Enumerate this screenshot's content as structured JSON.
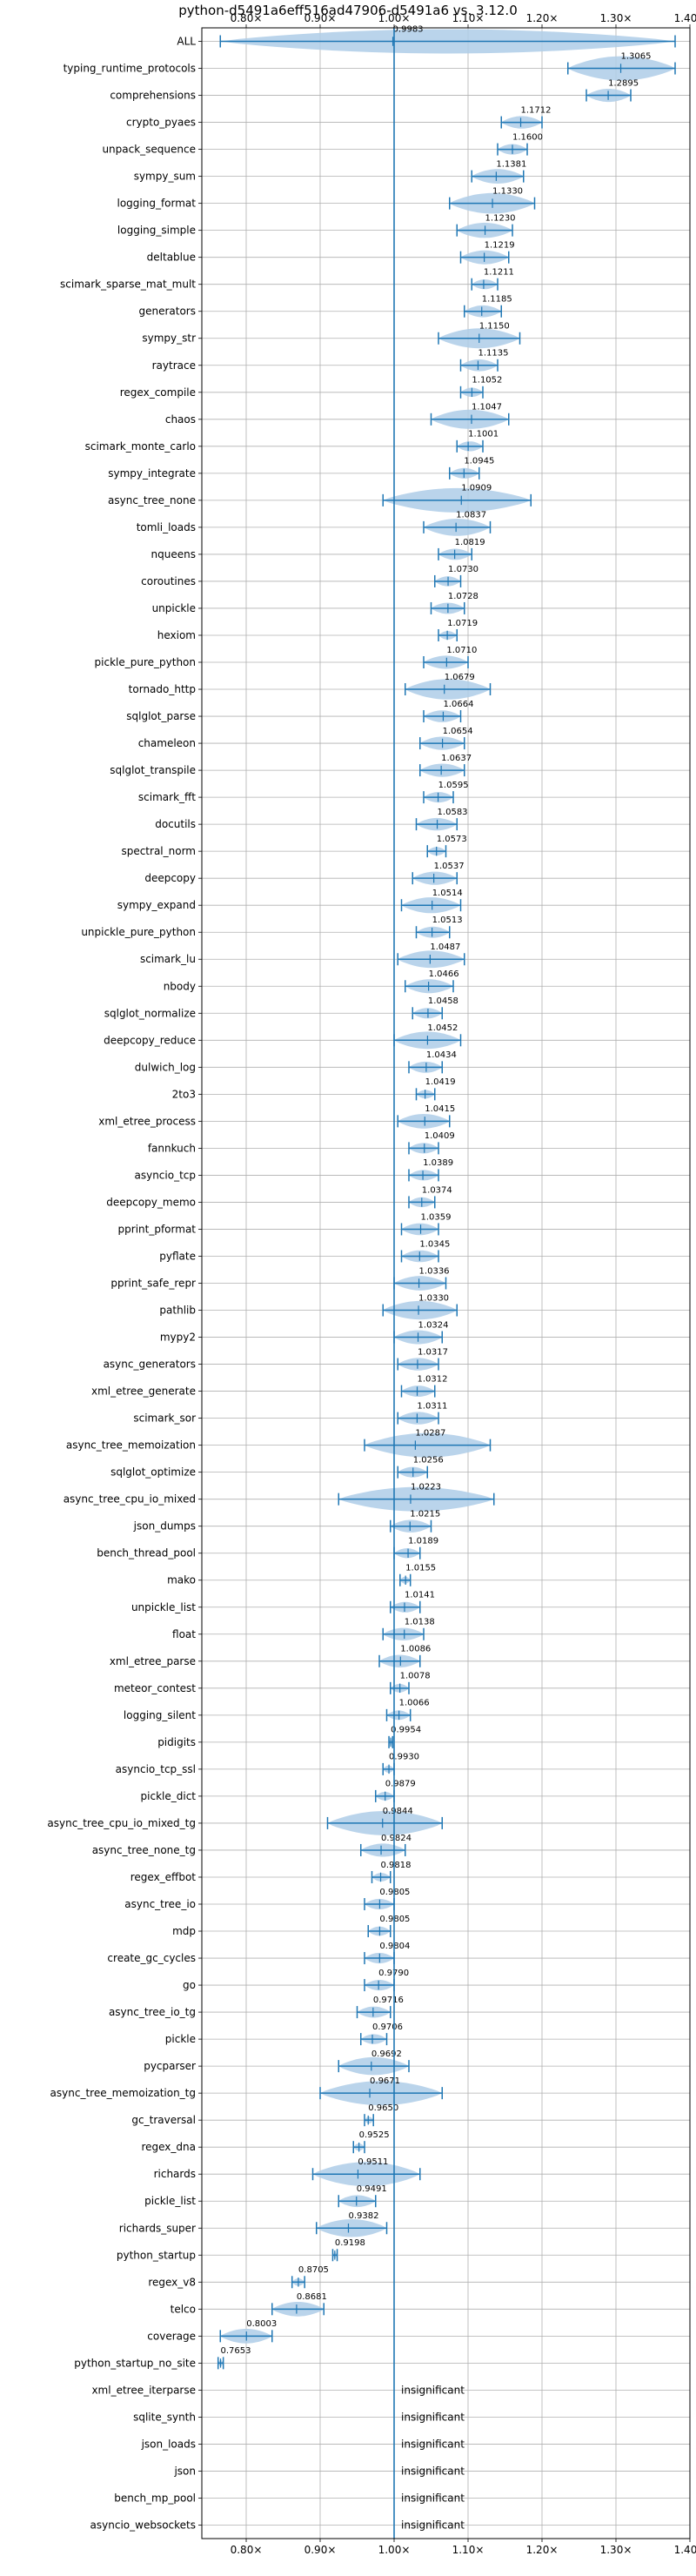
{
  "chart_data": {
    "type": "violin",
    "title": "python-d5491a6eff516ad47906-d5491a6 vs. 3.12.0",
    "xlabel": "",
    "ylabel": "",
    "xlim": [
      0.74,
      1.4
    ],
    "x_ticks": [
      0.8,
      0.9,
      1.0,
      1.1,
      1.2,
      1.3,
      1.4
    ],
    "x_tick_labels": [
      "0.80×",
      "0.90×",
      "1.00×",
      "1.10×",
      "1.20×",
      "1.30×",
      "1.40×"
    ],
    "reference_line": 1.0,
    "grid": true,
    "color": "#1f77b4",
    "violin_fill": "#aecde8",
    "insignificant_label": "insignificant",
    "benchmarks": [
      {
        "name": "ALL",
        "value": 0.9983,
        "label": "0.9983",
        "min": 0.765,
        "max": 1.38
      },
      {
        "name": "typing_runtime_protocols",
        "value": 1.3065,
        "label": "1.3065",
        "min": 1.235,
        "max": 1.38
      },
      {
        "name": "comprehensions",
        "value": 1.2895,
        "label": "1.2895",
        "min": 1.26,
        "max": 1.32
      },
      {
        "name": "crypto_pyaes",
        "value": 1.1712,
        "label": "1.1712",
        "min": 1.145,
        "max": 1.2
      },
      {
        "name": "unpack_sequence",
        "value": 1.16,
        "label": "1.1600",
        "min": 1.14,
        "max": 1.18
      },
      {
        "name": "sympy_sum",
        "value": 1.1381,
        "label": "1.1381",
        "min": 1.105,
        "max": 1.175
      },
      {
        "name": "logging_format",
        "value": 1.133,
        "label": "1.1330",
        "min": 1.075,
        "max": 1.19
      },
      {
        "name": "logging_simple",
        "value": 1.123,
        "label": "1.1230",
        "min": 1.085,
        "max": 1.16
      },
      {
        "name": "deltablue",
        "value": 1.1219,
        "label": "1.1219",
        "min": 1.09,
        "max": 1.155
      },
      {
        "name": "scimark_sparse_mat_mult",
        "value": 1.1211,
        "label": "1.1211",
        "min": 1.105,
        "max": 1.14
      },
      {
        "name": "generators",
        "value": 1.1185,
        "label": "1.1185",
        "min": 1.095,
        "max": 1.145
      },
      {
        "name": "sympy_str",
        "value": 1.115,
        "label": "1.1150",
        "min": 1.06,
        "max": 1.17
      },
      {
        "name": "raytrace",
        "value": 1.1135,
        "label": "1.1135",
        "min": 1.09,
        "max": 1.14
      },
      {
        "name": "regex_compile",
        "value": 1.1052,
        "label": "1.1052",
        "min": 1.09,
        "max": 1.12
      },
      {
        "name": "chaos",
        "value": 1.1047,
        "label": "1.1047",
        "min": 1.05,
        "max": 1.155
      },
      {
        "name": "scimark_monte_carlo",
        "value": 1.1001,
        "label": "1.1001",
        "min": 1.085,
        "max": 1.12
      },
      {
        "name": "sympy_integrate",
        "value": 1.0945,
        "label": "1.0945",
        "min": 1.075,
        "max": 1.115
      },
      {
        "name": "async_tree_none",
        "value": 1.0909,
        "label": "1.0909",
        "min": 0.985,
        "max": 1.185
      },
      {
        "name": "tomli_loads",
        "value": 1.0837,
        "label": "1.0837",
        "min": 1.04,
        "max": 1.13
      },
      {
        "name": "nqueens",
        "value": 1.0819,
        "label": "1.0819",
        "min": 1.06,
        "max": 1.105
      },
      {
        "name": "coroutines",
        "value": 1.073,
        "label": "1.0730",
        "min": 1.055,
        "max": 1.09
      },
      {
        "name": "unpickle",
        "value": 1.0728,
        "label": "1.0728",
        "min": 1.05,
        "max": 1.095
      },
      {
        "name": "hexiom",
        "value": 1.0719,
        "label": "1.0719",
        "min": 1.06,
        "max": 1.085
      },
      {
        "name": "pickle_pure_python",
        "value": 1.071,
        "label": "1.0710",
        "min": 1.04,
        "max": 1.1
      },
      {
        "name": "tornado_http",
        "value": 1.0679,
        "label": "1.0679",
        "min": 1.015,
        "max": 1.13
      },
      {
        "name": "sqlglot_parse",
        "value": 1.0664,
        "label": "1.0664",
        "min": 1.04,
        "max": 1.09
      },
      {
        "name": "chameleon",
        "value": 1.0654,
        "label": "1.0654",
        "min": 1.035,
        "max": 1.095
      },
      {
        "name": "sqlglot_transpile",
        "value": 1.0637,
        "label": "1.0637",
        "min": 1.035,
        "max": 1.095
      },
      {
        "name": "scimark_fft",
        "value": 1.0595,
        "label": "1.0595",
        "min": 1.04,
        "max": 1.08
      },
      {
        "name": "docutils",
        "value": 1.0583,
        "label": "1.0583",
        "min": 1.03,
        "max": 1.085
      },
      {
        "name": "spectral_norm",
        "value": 1.0573,
        "label": "1.0573",
        "min": 1.045,
        "max": 1.07
      },
      {
        "name": "deepcopy",
        "value": 1.0537,
        "label": "1.0537",
        "min": 1.025,
        "max": 1.085
      },
      {
        "name": "sympy_expand",
        "value": 1.0514,
        "label": "1.0514",
        "min": 1.01,
        "max": 1.09
      },
      {
        "name": "unpickle_pure_python",
        "value": 1.0513,
        "label": "1.0513",
        "min": 1.03,
        "max": 1.075
      },
      {
        "name": "scimark_lu",
        "value": 1.0487,
        "label": "1.0487",
        "min": 1.005,
        "max": 1.095
      },
      {
        "name": "nbody",
        "value": 1.0466,
        "label": "1.0466",
        "min": 1.015,
        "max": 1.08
      },
      {
        "name": "sqlglot_normalize",
        "value": 1.0458,
        "label": "1.0458",
        "min": 1.025,
        "max": 1.065
      },
      {
        "name": "deepcopy_reduce",
        "value": 1.0452,
        "label": "1.0452",
        "min": 1.0,
        "max": 1.09
      },
      {
        "name": "dulwich_log",
        "value": 1.0434,
        "label": "1.0434",
        "min": 1.02,
        "max": 1.065
      },
      {
        "name": "2to3",
        "value": 1.0419,
        "label": "1.0419",
        "min": 1.03,
        "max": 1.055
      },
      {
        "name": "xml_etree_process",
        "value": 1.0415,
        "label": "1.0415",
        "min": 1.005,
        "max": 1.075
      },
      {
        "name": "fannkuch",
        "value": 1.0409,
        "label": "1.0409",
        "min": 1.02,
        "max": 1.06
      },
      {
        "name": "asyncio_tcp",
        "value": 1.0389,
        "label": "1.0389",
        "min": 1.02,
        "max": 1.06
      },
      {
        "name": "deepcopy_memo",
        "value": 1.0374,
        "label": "1.0374",
        "min": 1.02,
        "max": 1.055
      },
      {
        "name": "pprint_pformat",
        "value": 1.0359,
        "label": "1.0359",
        "min": 1.01,
        "max": 1.06
      },
      {
        "name": "pyflate",
        "value": 1.0345,
        "label": "1.0345",
        "min": 1.01,
        "max": 1.06
      },
      {
        "name": "pprint_safe_repr",
        "value": 1.0336,
        "label": "1.0336",
        "min": 1.0,
        "max": 1.07
      },
      {
        "name": "pathlib",
        "value": 1.033,
        "label": "1.0330",
        "min": 0.985,
        "max": 1.085
      },
      {
        "name": "mypy2",
        "value": 1.0324,
        "label": "1.0324",
        "min": 1.0,
        "max": 1.065
      },
      {
        "name": "async_generators",
        "value": 1.0317,
        "label": "1.0317",
        "min": 1.005,
        "max": 1.06
      },
      {
        "name": "xml_etree_generate",
        "value": 1.0312,
        "label": "1.0312",
        "min": 1.01,
        "max": 1.055
      },
      {
        "name": "scimark_sor",
        "value": 1.0311,
        "label": "1.0311",
        "min": 1.005,
        "max": 1.06
      },
      {
        "name": "async_tree_memoization",
        "value": 1.0287,
        "label": "1.0287",
        "min": 0.96,
        "max": 1.13
      },
      {
        "name": "sqlglot_optimize",
        "value": 1.0256,
        "label": "1.0256",
        "min": 1.005,
        "max": 1.045
      },
      {
        "name": "async_tree_cpu_io_mixed",
        "value": 1.0223,
        "label": "1.0223",
        "min": 0.925,
        "max": 1.135
      },
      {
        "name": "json_dumps",
        "value": 1.0215,
        "label": "1.0215",
        "min": 0.995,
        "max": 1.05
      },
      {
        "name": "bench_thread_pool",
        "value": 1.0189,
        "label": "1.0189",
        "min": 1.0,
        "max": 1.035
      },
      {
        "name": "mako",
        "value": 1.0155,
        "label": "1.0155",
        "min": 1.008,
        "max": 1.022
      },
      {
        "name": "unpickle_list",
        "value": 1.0141,
        "label": "1.0141",
        "min": 0.995,
        "max": 1.035
      },
      {
        "name": "float",
        "value": 1.0138,
        "label": "1.0138",
        "min": 0.985,
        "max": 1.04
      },
      {
        "name": "xml_etree_parse",
        "value": 1.0086,
        "label": "1.0086",
        "min": 0.98,
        "max": 1.035
      },
      {
        "name": "meteor_contest",
        "value": 1.0078,
        "label": "1.0078",
        "min": 0.995,
        "max": 1.02
      },
      {
        "name": "logging_silent",
        "value": 1.0066,
        "label": "1.0066",
        "min": 0.99,
        "max": 1.022
      },
      {
        "name": "pidigits",
        "value": 0.9954,
        "label": "0.9954",
        "min": 0.993,
        "max": 0.998
      },
      {
        "name": "asyncio_tcp_ssl",
        "value": 0.993,
        "label": "0.9930",
        "min": 0.985,
        "max": 1.0
      },
      {
        "name": "pickle_dict",
        "value": 0.9879,
        "label": "0.9879",
        "min": 0.975,
        "max": 1.0
      },
      {
        "name": "async_tree_cpu_io_mixed_tg",
        "value": 0.9844,
        "label": "0.9844",
        "min": 0.91,
        "max": 1.065
      },
      {
        "name": "async_tree_none_tg",
        "value": 0.9824,
        "label": "0.9824",
        "min": 0.955,
        "max": 1.015
      },
      {
        "name": "regex_effbot",
        "value": 0.9818,
        "label": "0.9818",
        "min": 0.97,
        "max": 0.995
      },
      {
        "name": "async_tree_io",
        "value": 0.9805,
        "label": "0.9805",
        "min": 0.96,
        "max": 1.0
      },
      {
        "name": "mdp",
        "value": 0.9805,
        "label": "0.9805",
        "min": 0.965,
        "max": 0.995
      },
      {
        "name": "create_gc_cycles",
        "value": 0.9804,
        "label": "0.9804",
        "min": 0.96,
        "max": 1.0
      },
      {
        "name": "go",
        "value": 0.979,
        "label": "0.9790",
        "min": 0.96,
        "max": 1.0
      },
      {
        "name": "async_tree_io_tg",
        "value": 0.9716,
        "label": "0.9716",
        "min": 0.95,
        "max": 0.995
      },
      {
        "name": "pickle",
        "value": 0.9706,
        "label": "0.9706",
        "min": 0.955,
        "max": 0.99
      },
      {
        "name": "pycparser",
        "value": 0.9692,
        "label": "0.9692",
        "min": 0.925,
        "max": 1.02
      },
      {
        "name": "async_tree_memoization_tg",
        "value": 0.9671,
        "label": "0.9671",
        "min": 0.9,
        "max": 1.065
      },
      {
        "name": "gc_traversal",
        "value": 0.965,
        "label": "0.9650",
        "min": 0.96,
        "max": 0.972
      },
      {
        "name": "regex_dna",
        "value": 0.9525,
        "label": "0.9525",
        "min": 0.945,
        "max": 0.96
      },
      {
        "name": "richards",
        "value": 0.9511,
        "label": "0.9511",
        "min": 0.89,
        "max": 1.035
      },
      {
        "name": "pickle_list",
        "value": 0.9491,
        "label": "0.9491",
        "min": 0.925,
        "max": 0.975
      },
      {
        "name": "richards_super",
        "value": 0.9382,
        "label": "0.9382",
        "min": 0.895,
        "max": 0.99
      },
      {
        "name": "python_startup",
        "value": 0.9198,
        "label": "0.9198",
        "min": 0.917,
        "max": 0.923
      },
      {
        "name": "regex_v8",
        "value": 0.8705,
        "label": "0.8705",
        "min": 0.862,
        "max": 0.879
      },
      {
        "name": "telco",
        "value": 0.8681,
        "label": "0.8681",
        "min": 0.835,
        "max": 0.905
      },
      {
        "name": "coverage",
        "value": 0.8003,
        "label": "0.8003",
        "min": 0.765,
        "max": 0.835
      },
      {
        "name": "python_startup_no_site",
        "value": 0.7653,
        "label": "0.7653",
        "min": 0.762,
        "max": 0.769
      },
      {
        "name": "xml_etree_iterparse",
        "insignificant": true
      },
      {
        "name": "sqlite_synth",
        "insignificant": true
      },
      {
        "name": "json_loads",
        "insignificant": true
      },
      {
        "name": "json",
        "insignificant": true
      },
      {
        "name": "bench_mp_pool",
        "insignificant": true
      },
      {
        "name": "asyncio_websockets",
        "insignificant": true
      }
    ]
  }
}
